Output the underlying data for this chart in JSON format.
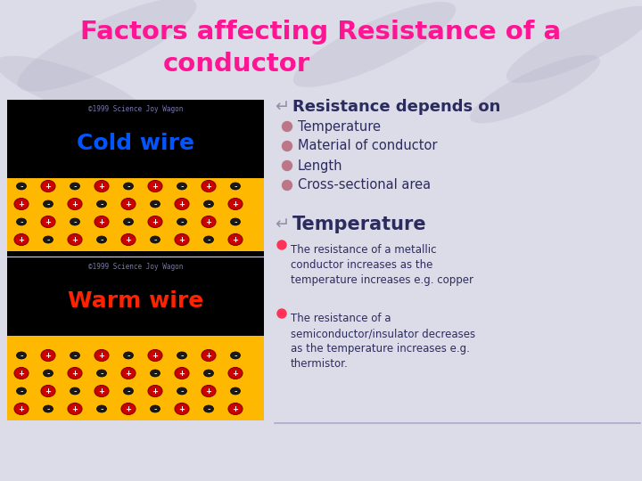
{
  "title_line1": "Factors affecting Resistance of a",
  "title_line2": "conductor",
  "title_color": "#FF1493",
  "bg_color": "#DCDCE8",
  "cold_wire_color": "#0055FF",
  "cold_wire_label": "Cold wire",
  "warm_wire_color": "#FF2200",
  "warm_wire_label": "Warm wire",
  "wire_fill_color": "#FFB800",
  "copyright_text": "©1999 Science Joy Wagon",
  "copyright_color": "#7777AA",
  "section1_header": "Resistance depends on",
  "section1_header_color": "#2B2B5E",
  "bullets": [
    "Temperature",
    "Material of conductor",
    "Length",
    "Cross-sectional area"
  ],
  "bullet_text_color": "#2B2B5E",
  "section2_header": "Temperature",
  "section2_header_color": "#2B2B5E",
  "para1": "The resistance of a metallic\nconductor increases as the\ntemperature increases e.g. copper",
  "para2": "The resistance of a\nsemiconductor/insulator decreases\nas the temperature increases e.g.\nthermistor.",
  "para_text_color": "#2B2B5E"
}
